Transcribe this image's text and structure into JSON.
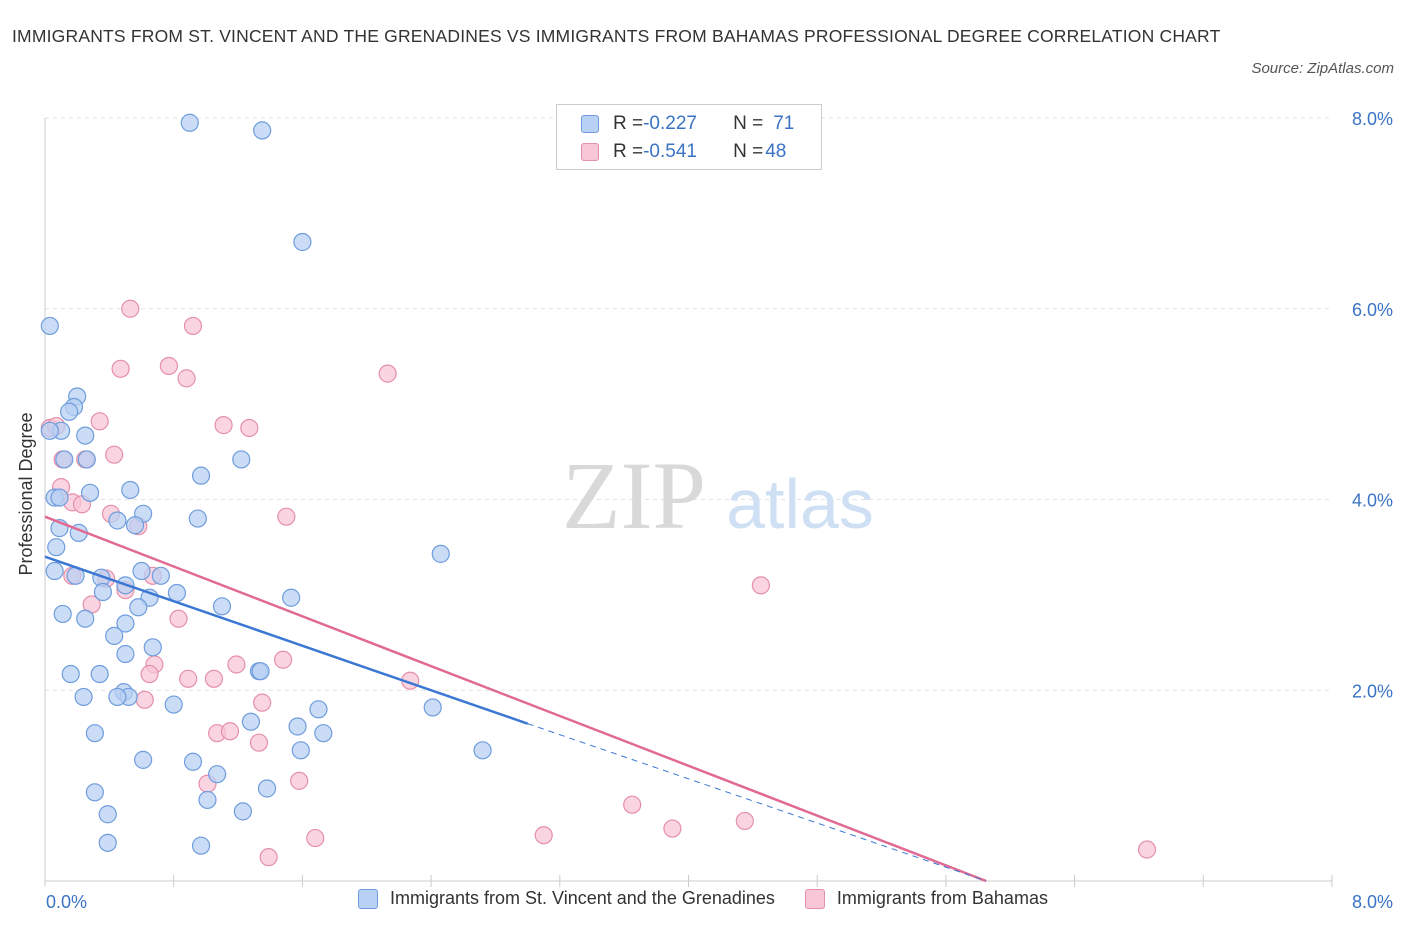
{
  "title": "IMMIGRANTS FROM ST. VINCENT AND THE GRENADINES VS IMMIGRANTS FROM BAHAMAS PROFESSIONAL DEGREE CORRELATION CHART",
  "source": "Source: ZipAtlas.com",
  "watermark": {
    "zip": "ZIP",
    "atlas": "atlas"
  },
  "legend": {
    "series1": {
      "r_label": "R = ",
      "r_value": "-0.227",
      "n_label": "N = ",
      "n_value": "71"
    },
    "series2": {
      "r_label": "R = ",
      "r_value": "-0.541",
      "n_label": "N = ",
      "n_value": "48"
    }
  },
  "colors": {
    "series1_fill": "#b8d0f3",
    "series1_stroke": "#6f9ddd",
    "series1_line": "#3a78d4",
    "series2_fill": "#f8c6d6",
    "series2_stroke": "#e58fab",
    "series2_line": "#e06a93",
    "axis_text": "#3b73c4",
    "grid": "#e2e2e2"
  },
  "chart_data": {
    "type": "scatter",
    "xlabel": "",
    "ylabel": "Professional Degree",
    "xlim": [
      0,
      8
    ],
    "ylim": [
      0,
      8
    ],
    "x_tick_labels": [
      "0.0%",
      "8.0%"
    ],
    "y_ticks": [
      2,
      4,
      6,
      8
    ],
    "y_tick_labels": [
      "2.0%",
      "4.0%",
      "6.0%",
      "8.0%"
    ],
    "grid": true,
    "series": [
      {
        "name": "Immigrants from St. Vincent and the Grenadines",
        "points": [
          [
            0.9,
            7.95
          ],
          [
            1.35,
            7.87
          ],
          [
            1.6,
            6.7
          ],
          [
            0.03,
            5.82
          ],
          [
            0.2,
            5.08
          ],
          [
            0.18,
            4.97
          ],
          [
            0.15,
            4.92
          ],
          [
            0.1,
            4.72
          ],
          [
            0.25,
            4.67
          ],
          [
            0.12,
            4.42
          ],
          [
            0.26,
            4.42
          ],
          [
            1.22,
            4.42
          ],
          [
            0.97,
            4.25
          ],
          [
            0.28,
            4.07
          ],
          [
            0.53,
            4.1
          ],
          [
            0.06,
            4.02
          ],
          [
            0.09,
            4.02
          ],
          [
            0.61,
            3.85
          ],
          [
            0.45,
            3.78
          ],
          [
            0.56,
            3.73
          ],
          [
            0.95,
            3.8
          ],
          [
            0.21,
            3.65
          ],
          [
            0.09,
            3.7
          ],
          [
            0.07,
            3.5
          ],
          [
            0.06,
            3.25
          ],
          [
            0.19,
            3.2
          ],
          [
            0.35,
            3.18
          ],
          [
            0.6,
            3.25
          ],
          [
            0.72,
            3.2
          ],
          [
            0.5,
            3.1
          ],
          [
            0.36,
            3.03
          ],
          [
            0.65,
            2.97
          ],
          [
            0.82,
            3.02
          ],
          [
            1.53,
            2.97
          ],
          [
            2.46,
            3.43
          ],
          [
            0.58,
            2.87
          ],
          [
            1.1,
            2.88
          ],
          [
            0.11,
            2.8
          ],
          [
            0.25,
            2.75
          ],
          [
            0.5,
            2.7
          ],
          [
            0.43,
            2.57
          ],
          [
            0.67,
            2.45
          ],
          [
            0.5,
            2.38
          ],
          [
            0.16,
            2.17
          ],
          [
            0.34,
            2.17
          ],
          [
            1.33,
            2.2
          ],
          [
            1.34,
            2.2
          ],
          [
            0.49,
            1.98
          ],
          [
            0.52,
            1.93
          ],
          [
            0.24,
            1.93
          ],
          [
            0.45,
            1.93
          ],
          [
            0.8,
            1.85
          ],
          [
            1.7,
            1.8
          ],
          [
            2.41,
            1.82
          ],
          [
            0.31,
            1.55
          ],
          [
            1.28,
            1.67
          ],
          [
            1.57,
            1.62
          ],
          [
            1.73,
            1.55
          ],
          [
            1.59,
            1.37
          ],
          [
            2.72,
            1.37
          ],
          [
            0.61,
            1.27
          ],
          [
            0.92,
            1.25
          ],
          [
            1.07,
            1.12
          ],
          [
            1.38,
            0.97
          ],
          [
            0.31,
            0.93
          ],
          [
            1.01,
            0.85
          ],
          [
            0.39,
            0.7
          ],
          [
            1.23,
            0.73
          ],
          [
            0.39,
            0.4
          ],
          [
            0.97,
            0.37
          ],
          [
            0.03,
            4.72
          ]
        ]
      },
      {
        "name": "Immigrants from Bahamas",
        "points": [
          [
            0.03,
            4.75
          ],
          [
            0.53,
            6.0
          ],
          [
            0.92,
            5.82
          ],
          [
            0.77,
            5.4
          ],
          [
            0.47,
            5.37
          ],
          [
            0.88,
            5.27
          ],
          [
            2.13,
            5.32
          ],
          [
            0.34,
            4.82
          ],
          [
            1.11,
            4.78
          ],
          [
            1.27,
            4.75
          ],
          [
            0.07,
            4.77
          ],
          [
            0.43,
            4.47
          ],
          [
            0.11,
            4.42
          ],
          [
            0.25,
            4.42
          ],
          [
            0.1,
            4.13
          ],
          [
            0.17,
            3.97
          ],
          [
            0.23,
            3.95
          ],
          [
            0.41,
            3.85
          ],
          [
            1.5,
            3.82
          ],
          [
            0.58,
            3.72
          ],
          [
            0.17,
            3.2
          ],
          [
            0.38,
            3.17
          ],
          [
            0.67,
            3.2
          ],
          [
            0.5,
            3.05
          ],
          [
            0.29,
            2.9
          ],
          [
            0.83,
            2.75
          ],
          [
            4.45,
            3.1
          ],
          [
            0.68,
            2.27
          ],
          [
            1.19,
            2.27
          ],
          [
            1.48,
            2.32
          ],
          [
            0.65,
            2.17
          ],
          [
            0.89,
            2.12
          ],
          [
            1.05,
            2.12
          ],
          [
            2.27,
            2.1
          ],
          [
            0.62,
            1.9
          ],
          [
            1.35,
            1.87
          ],
          [
            1.07,
            1.55
          ],
          [
            1.15,
            1.57
          ],
          [
            1.33,
            1.45
          ],
          [
            1.58,
            1.05
          ],
          [
            1.01,
            1.02
          ],
          [
            3.65,
            0.8
          ],
          [
            3.9,
            0.55
          ],
          [
            4.35,
            0.63
          ],
          [
            3.1,
            0.48
          ],
          [
            1.68,
            0.45
          ],
          [
            1.39,
            0.25
          ],
          [
            6.85,
            0.33
          ]
        ]
      }
    ],
    "trendlines": [
      {
        "series": "Immigrants from St. Vincent and the Grenadines",
        "solid": [
          [
            0,
            3.4
          ],
          [
            3.0,
            1.65
          ]
        ],
        "dashed": [
          [
            3.0,
            1.65
          ],
          [
            5.85,
            0.0
          ]
        ]
      },
      {
        "series": "Immigrants from Bahamas",
        "solid": [
          [
            0,
            3.82
          ],
          [
            5.85,
            0.0
          ]
        ]
      }
    ]
  }
}
